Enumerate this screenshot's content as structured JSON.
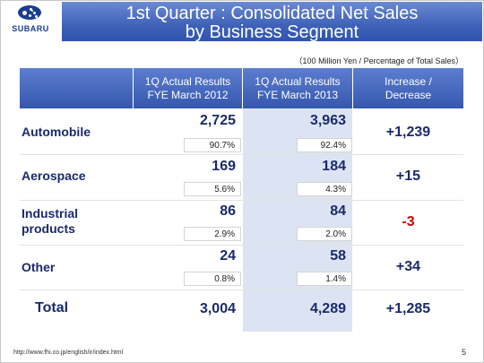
{
  "logo": {
    "text": "SUBARU"
  },
  "title": {
    "line1": "1st Quarter : Consolidated Net Sales",
    "line2": "by Business Segment"
  },
  "units_note": "（100 Million Yen / Percentage of Total Sales）",
  "columns": {
    "col1": {
      "line1": "1Q Actual Results",
      "line2": "FYE March 2012"
    },
    "col2": {
      "line1": "1Q Actual Results",
      "line2": "FYE March 2013"
    },
    "col3": {
      "line1": "Increase /",
      "line2": "Decrease"
    }
  },
  "rows": [
    {
      "label_line1": "Automobile",
      "label_line2": "",
      "fy2012": "2,725",
      "fy2012_pct": "90.7%",
      "fy2013": "3,963",
      "fy2013_pct": "92.4%",
      "change": "+1,239"
    },
    {
      "label_line1": "Aerospace",
      "label_line2": "",
      "fy2012": "169",
      "fy2012_pct": "5.6%",
      "fy2013": "184",
      "fy2013_pct": "4.3%",
      "change": "+15"
    },
    {
      "label_line1": "Industrial",
      "label_line2": "products",
      "fy2012": "86",
      "fy2012_pct": "2.9%",
      "fy2013": "84",
      "fy2013_pct": "2.0%",
      "change": "-3"
    },
    {
      "label_line1": "Other",
      "label_line2": "",
      "fy2012": "24",
      "fy2012_pct": "0.8%",
      "fy2013": "58",
      "fy2013_pct": "1.4%",
      "change": "+34"
    }
  ],
  "total": {
    "label": "Total",
    "fy2012": "3,004",
    "fy2013": "4,289",
    "change": "+1,285"
  },
  "footer": {
    "url": "http://www.fhi.co.jp/english/ir/index.html",
    "page": "5"
  },
  "colors": {
    "header_blue": "#3f62b8",
    "value_navy": "#1a2a6c",
    "negative_red": "#d20000",
    "highlight_column": "#dce4f3"
  }
}
